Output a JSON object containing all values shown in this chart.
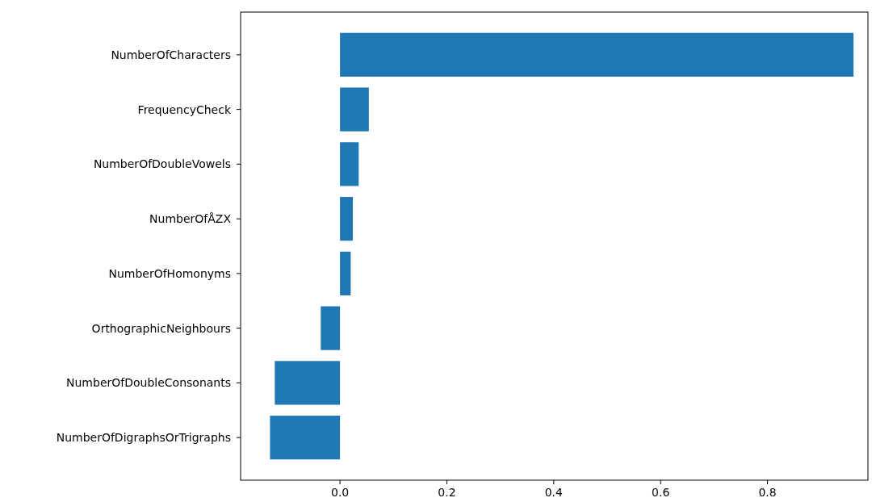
{
  "chart_data": {
    "type": "bar",
    "orientation": "horizontal",
    "categories": [
      "NumberOfCharacters",
      "FrequencyCheck",
      "NumberOfDoubleVowels",
      "NumberOfÅZX",
      "NumberOfHomonyms",
      "OrthographicNeighbours",
      "NumberOfDoubleConsonants",
      "NumberOfDigraphsOrTrigraphs"
    ],
    "values": [
      0.961,
      0.054,
      0.035,
      0.024,
      0.02,
      -0.036,
      -0.122,
      -0.131
    ],
    "color": "#1f77b4",
    "xlim": [
      -0.186,
      0.988
    ],
    "xticks": [
      {
        "value": 0,
        "label": "0.0"
      },
      {
        "value": 0.2,
        "label": "0.2"
      },
      {
        "value": 0.4,
        "label": "0.4"
      },
      {
        "value": 0.6,
        "label": "0.6"
      },
      {
        "value": 0.8,
        "label": "0.8"
      }
    ],
    "grid": false
  }
}
